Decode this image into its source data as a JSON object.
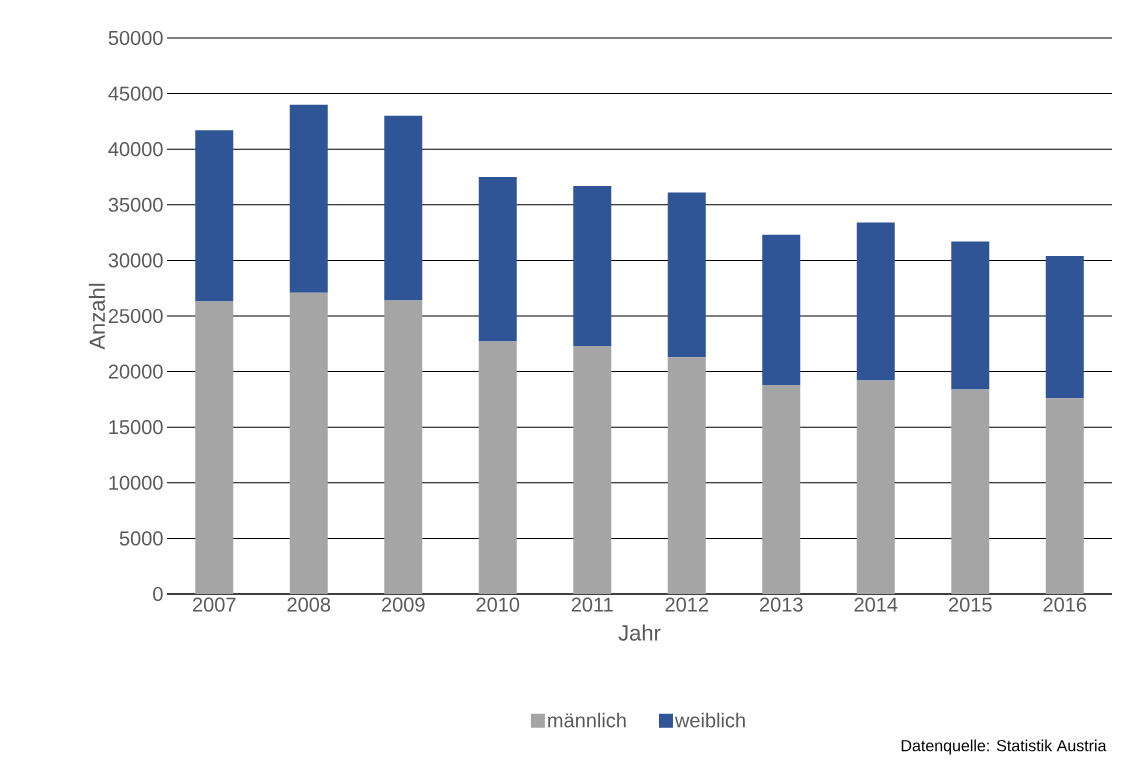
{
  "chart_data": {
    "type": "bar",
    "stacked": true,
    "xlabel": "Jahr",
    "ylabel": "Anzahl",
    "categories": [
      "2007",
      "2008",
      "2009",
      "2010",
      "2011",
      "2012",
      "2013",
      "2014",
      "2015",
      "2016"
    ],
    "series": [
      {
        "name": "männlich",
        "color": "#a5a5a5",
        "values": [
          26300,
          27100,
          26400,
          22700,
          22300,
          21300,
          18800,
          19200,
          18400,
          17600
        ]
      },
      {
        "name": "weiblich",
        "color": "#2f5597",
        "values": [
          15400,
          16900,
          16600,
          14800,
          14400,
          14800,
          13500,
          14200,
          13300,
          12800
        ]
      }
    ],
    "ylim": [
      0,
      50000
    ],
    "yticks": [
      0,
      5000,
      10000,
      15000,
      20000,
      25000,
      30000,
      35000,
      40000,
      45000,
      50000
    ],
    "grid": "y",
    "legend": "bottom",
    "annotations": [
      "Datenquelle: Statistik Austria"
    ]
  }
}
